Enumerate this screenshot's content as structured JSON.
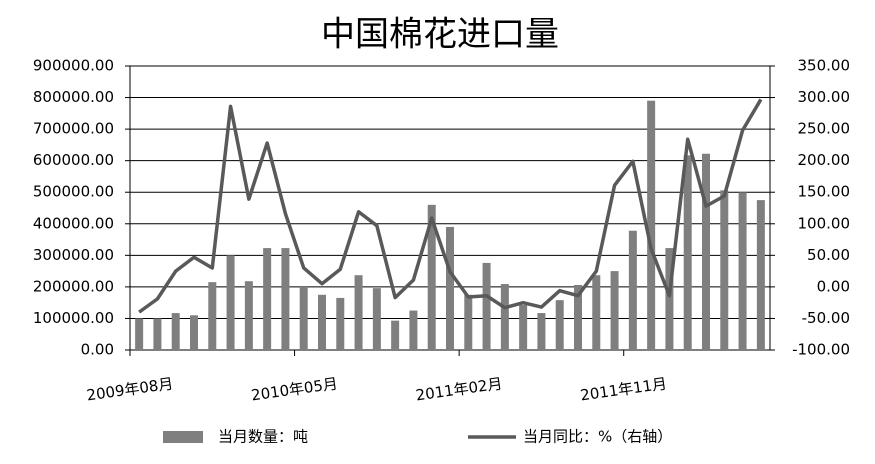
{
  "chart_data": {
    "type": "bar-line",
    "title": "中国棉花进口量",
    "categories": [
      "2009年08月",
      null,
      null,
      null,
      null,
      null,
      null,
      null,
      null,
      "2010年05月",
      null,
      null,
      null,
      null,
      null,
      null,
      null,
      null,
      "2011年02月",
      null,
      null,
      null,
      null,
      null,
      null,
      null,
      null,
      "2011年11月",
      null,
      null,
      null,
      null,
      null,
      null,
      null
    ],
    "series": [
      {
        "name": "当月数量：吨",
        "color": "#7f7f7f",
        "values": [
          100000,
          100000,
          117000,
          110000,
          215000,
          300000,
          218000,
          323000,
          323000,
          200000,
          175000,
          165000,
          237000,
          196000,
          93000,
          125000,
          460000,
          390000,
          175000,
          276000,
          209000,
          143000,
          117000,
          158000,
          206000,
          237000,
          250000,
          378000,
          790000,
          323000,
          617000,
          622000,
          506000,
          500000,
          475000
        ]
      },
      {
        "name": "当月同比：%（右轴）",
        "color": "#595959",
        "axis": "y2",
        "values": [
          -40,
          -19,
          25,
          47,
          30,
          286,
          139,
          228,
          116,
          30,
          5,
          28,
          119,
          97,
          -17,
          11,
          109,
          24,
          -16,
          -14,
          -33,
          -25,
          -32,
          -6,
          -14,
          25,
          161,
          199,
          60,
          -14,
          234,
          128,
          144,
          248,
          297
        ]
      }
    ],
    "ylim": [
      0,
      900000
    ],
    "yticks": [
      {
        "value": 0,
        "label": "0.00"
      },
      {
        "value": 100000,
        "label": "100000.00"
      },
      {
        "value": 200000,
        "label": "200000.00"
      },
      {
        "value": 300000,
        "label": "300000.00"
      },
      {
        "value": 400000,
        "label": "400000.00"
      },
      {
        "value": 500000,
        "label": "500000.00"
      },
      {
        "value": 600000,
        "label": "600000.00"
      },
      {
        "value": 700000,
        "label": "700000.00"
      },
      {
        "value": 800000,
        "label": "800000.00"
      },
      {
        "value": 900000,
        "label": "900000.00"
      }
    ],
    "y2lim": [
      -100,
      350
    ],
    "y2ticks": [
      {
        "value": -100,
        "label": "-100.00"
      },
      {
        "value": -50,
        "label": "-50.00"
      },
      {
        "value": 0,
        "label": "0.00"
      },
      {
        "value": 50,
        "label": "50.00"
      },
      {
        "value": 100,
        "label": "100.00"
      },
      {
        "value": 150,
        "label": "150.00"
      },
      {
        "value": 200,
        "label": "200.00"
      },
      {
        "value": 250,
        "label": "250.00"
      },
      {
        "value": 300,
        "label": "300.00"
      },
      {
        "value": 350,
        "label": "350.00"
      }
    ],
    "grid": true
  }
}
